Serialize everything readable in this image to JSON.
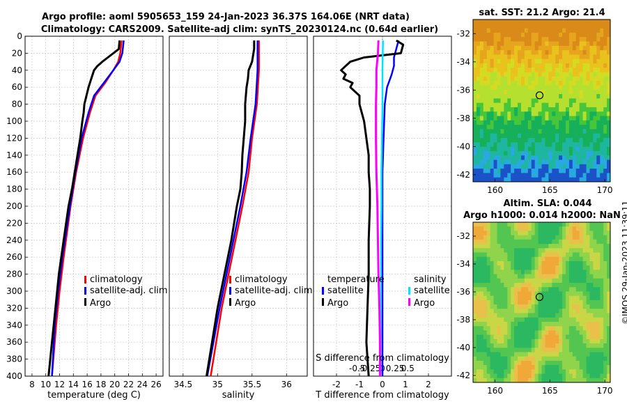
{
  "title_line1": "Argo profile: aoml 5905653_159 24-Jan-2023 36.37S 164.06E (NRT data)",
  "title_line2": "Climatology: CARS2009. Satellite-adj clim: synTS_20230124.nc (0.64d earlier)",
  "sst_map_title": "sat. SST: 21.2 Argo: 21.4",
  "sla_map_title1": "Altim. SLA: 0.044",
  "sla_map_title2": "Argo h1000: 0.014 h2000: NaN",
  "copyright": "©IMOS 29-Jan-2023 11:39:11",
  "colors": {
    "climatology": "#ff0000",
    "satellite_clim": "#0000ff",
    "argo": "#000000",
    "sal_satellite": "#00e5ff",
    "sal_argo": "#ff00ff"
  },
  "chart_data": [
    {
      "type": "line",
      "id": "temperature",
      "xlabel": "temperature (deg C)",
      "ylabel": "depth",
      "xlim": [
        7,
        27
      ],
      "ylim": [
        400,
        0
      ],
      "xticks": [
        "8",
        "10",
        "12",
        "14",
        "16",
        "18",
        "20",
        "22",
        "24",
        "26"
      ],
      "yticks": [
        "0",
        "20",
        "40",
        "60",
        "80",
        "100",
        "120",
        "140",
        "160",
        "180",
        "200",
        "220",
        "240",
        "260",
        "280",
        "300",
        "320",
        "340",
        "360",
        "380",
        "400"
      ],
      "legend": [
        "climatology",
        "satellite-adj. clim",
        "Argo"
      ],
      "series": [
        {
          "name": "climatology",
          "depth": [
            5,
            20,
            30,
            40,
            55,
            70,
            90,
            120,
            160,
            200,
            260,
            300,
            340,
            400
          ],
          "values": [
            21.0,
            20.8,
            20.5,
            19.8,
            18.6,
            17.2,
            16.4,
            15.4,
            14.4,
            13.6,
            12.6,
            12.0,
            11.5,
            10.9
          ]
        },
        {
          "name": "satellite-adj. clim",
          "depth": [
            5,
            20,
            30,
            40,
            55,
            70,
            90,
            120,
            160,
            200,
            260,
            300,
            340,
            400
          ],
          "values": [
            21.3,
            21.1,
            20.7,
            19.8,
            18.4,
            17.0,
            16.2,
            15.2,
            14.3,
            13.5,
            12.4,
            11.8,
            11.3,
            10.9
          ]
        },
        {
          "name": "Argo",
          "depth": [
            5,
            15,
            25,
            30,
            35,
            40,
            45,
            50,
            60,
            70,
            80,
            90,
            100,
            120,
            140,
            160,
            180,
            200,
            240,
            280,
            320,
            360,
            400
          ],
          "values": [
            20.7,
            20.6,
            19.0,
            18.2,
            17.5,
            17.0,
            16.8,
            16.6,
            16.2,
            15.9,
            15.6,
            15.5,
            15.3,
            15.0,
            14.6,
            14.2,
            13.8,
            13.3,
            12.6,
            11.9,
            11.4,
            10.9,
            10.4
          ]
        }
      ]
    },
    {
      "type": "line",
      "id": "salinity",
      "xlabel": "salinity",
      "ylabel": "depth",
      "xlim": [
        34.3,
        36.3
      ],
      "ylim": [
        400,
        0
      ],
      "xticks": [
        "34.5",
        "35",
        "35.5",
        "36"
      ],
      "legend": [
        "climatology",
        "satellite-adj. clim",
        "Argo"
      ],
      "series": [
        {
          "name": "climatology",
          "depth": [
            5,
            40,
            80,
            120,
            160,
            200,
            240,
            280,
            320,
            360,
            400
          ],
          "values": [
            35.6,
            35.6,
            35.57,
            35.5,
            35.45,
            35.36,
            35.26,
            35.16,
            35.06,
            34.98,
            34.9
          ]
        },
        {
          "name": "satellite-adj. clim",
          "depth": [
            5,
            40,
            80,
            120,
            160,
            200,
            240,
            280,
            320,
            360,
            400
          ],
          "values": [
            35.58,
            35.58,
            35.55,
            35.48,
            35.42,
            35.33,
            35.23,
            35.13,
            35.03,
            34.94,
            34.85
          ]
        },
        {
          "name": "Argo",
          "depth": [
            5,
            15,
            30,
            40,
            50,
            60,
            80,
            100,
            120,
            140,
            160,
            180,
            200,
            240,
            280,
            320,
            360,
            400
          ],
          "values": [
            35.53,
            35.53,
            35.5,
            35.45,
            35.44,
            35.42,
            35.4,
            35.4,
            35.38,
            35.36,
            35.35,
            35.33,
            35.28,
            35.2,
            35.1,
            35.0,
            34.92,
            34.84
          ]
        }
      ]
    },
    {
      "type": "line",
      "id": "differences",
      "xlabel": "T difference from climatology",
      "x2label": "S difference from climatology",
      "ylabel": "depth",
      "xlim": [
        -3,
        3
      ],
      "ylim": [
        400,
        0
      ],
      "xticks": [
        "-2",
        "-1",
        "0",
        "1",
        "2"
      ],
      "x2ticks": [
        "-0.5",
        "-0.25",
        "0",
        "0.25",
        "0.5"
      ],
      "legend_temperature": [
        "temperature",
        "satellite",
        "Argo"
      ],
      "legend_salinity": [
        "salinity",
        "satellite",
        "Argo"
      ],
      "series": [
        {
          "name": "T satellite",
          "depth": [
            5,
            15,
            25,
            35,
            45,
            60,
            80,
            120,
            160,
            200,
            240,
            280,
            320,
            360,
            400
          ],
          "values": [
            0.7,
            0.6,
            0.5,
            0.5,
            0.4,
            0.2,
            0.1,
            0.05,
            0.0,
            0.0,
            0.0,
            0.0,
            0.0,
            0.0,
            0.0
          ]
        },
        {
          "name": "T Argo",
          "depth": [
            5,
            10,
            20,
            25,
            30,
            35,
            40,
            45,
            50,
            55,
            60,
            70,
            80,
            90,
            100,
            120,
            140,
            160,
            180,
            200,
            240,
            280,
            320,
            360,
            400
          ],
          "values": [
            0.6,
            0.9,
            0.8,
            -0.8,
            -1.4,
            -1.6,
            -1.8,
            -1.6,
            -1.7,
            -1.3,
            -1.4,
            -1.0,
            -1.0,
            -0.9,
            -0.8,
            -0.7,
            -0.6,
            -0.6,
            -0.55,
            -0.55,
            -0.6,
            -0.6,
            -0.65,
            -0.7,
            -0.6
          ]
        },
        {
          "name": "S satellite",
          "depth": [
            5,
            40,
            80,
            120,
            160,
            200,
            240,
            280,
            320,
            360,
            400
          ],
          "values": [
            0.01,
            0.0,
            0.0,
            -0.01,
            -0.02,
            -0.02,
            -0.03,
            -0.03,
            -0.03,
            -0.04,
            -0.04
          ]
        },
        {
          "name": "S Argo",
          "depth": [
            5,
            20,
            40,
            60,
            80,
            100,
            120,
            160,
            200,
            240,
            280,
            320,
            360,
            400
          ],
          "values": [
            -0.08,
            -0.09,
            -0.12,
            -0.12,
            -0.13,
            -0.13,
            -0.13,
            -0.12,
            -0.1,
            -0.09,
            -0.08,
            -0.06,
            -0.05,
            -0.05
          ]
        }
      ]
    },
    {
      "type": "heatmap",
      "id": "sst_map",
      "title": "sat. SST: 21.2 Argo: 21.4",
      "xlim": [
        158,
        170.5
      ],
      "ylim": [
        -42.5,
        -31
      ],
      "xticks": [
        "160",
        "165",
        "170"
      ],
      "yticks": [
        "-32",
        "-34",
        "-36",
        "-38",
        "-40",
        "-42"
      ],
      "argo_position": [
        164.06,
        -36.37
      ]
    },
    {
      "type": "heatmap",
      "id": "sla_map",
      "title": "Altim. SLA: 0.044",
      "xlim": [
        158,
        170.5
      ],
      "ylim": [
        -42.5,
        -31
      ],
      "xticks": [
        "160",
        "165",
        "170"
      ],
      "yticks": [
        "-32",
        "-34",
        "-36",
        "-38",
        "-40",
        "-42"
      ],
      "argo_position": [
        164.06,
        -36.37
      ]
    }
  ]
}
